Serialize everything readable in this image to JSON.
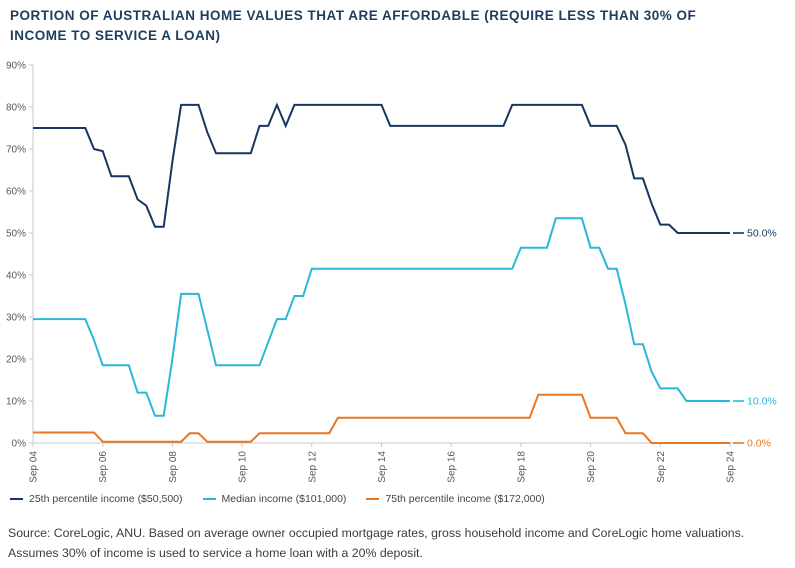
{
  "title": "PORTION OF AUSTRALIAN HOME VALUES THAT ARE AFFORDABLE (REQUIRE LESS THAN 30% OF INCOME TO SERVICE A LOAN)",
  "source_note": "Source: CoreLogic, ANU. Based on average owner occupied mortgage rates, gross household income and CoreLogic home valuations. Assumes 30% of income is used to service a home loan with a 20% deposit.",
  "chart_data": {
    "type": "line",
    "frequency": "quarterly",
    "x_start": "Sep 2004",
    "x_end": "Sep 2024",
    "ylim": [
      0,
      90
    ],
    "grid": "off",
    "legend_position": "bottom-left",
    "axis_color": "#c8c8c8",
    "tick_label_color": "#595959",
    "y_tick_labels": [
      "0%",
      "10%",
      "20%",
      "30%",
      "40%",
      "50%",
      "60%",
      "70%",
      "80%",
      "90%"
    ],
    "x_tick_labels": [
      "Sep 04",
      "Sep 06",
      "Sep 08",
      "Sep 10",
      "Sep 12",
      "Sep 14",
      "Sep 16",
      "Sep 18",
      "Sep 20",
      "Sep 22",
      "Sep 24"
    ],
    "x_tick_indices": [
      0,
      8,
      16,
      24,
      32,
      40,
      48,
      56,
      64,
      72,
      80
    ],
    "series": [
      {
        "name": "25th percentile income ($50,500)",
        "color": "#16375f",
        "end_label": "50.0%",
        "values": [
          75,
          75,
          75,
          75,
          75,
          75,
          75,
          70,
          69.5,
          63.5,
          63.5,
          63.5,
          58,
          56.5,
          51.5,
          51.5,
          67,
          80.5,
          80.5,
          80.5,
          74,
          69,
          69,
          69,
          69,
          69,
          75.5,
          75.5,
          80.5,
          75.5,
          80.5,
          80.5,
          80.5,
          80.5,
          80.5,
          80.5,
          80.5,
          80.5,
          80.5,
          80.5,
          80.5,
          75.5,
          75.5,
          75.5,
          75.5,
          75.5,
          75.5,
          75.5,
          75.5,
          75.5,
          75.5,
          75.5,
          75.5,
          75.5,
          75.5,
          80.5,
          80.5,
          80.5,
          80.5,
          80.5,
          80.5,
          80.5,
          80.5,
          80.5,
          75.5,
          75.5,
          75.5,
          75.5,
          71,
          63,
          63,
          57,
          52,
          52,
          50,
          50,
          50,
          50,
          50,
          50,
          50
        ]
      },
      {
        "name": "Median income ($101,000)",
        "color": "#2ab7d8",
        "end_label": "10.0%",
        "values": [
          29.5,
          29.5,
          29.5,
          29.5,
          29.5,
          29.5,
          29.5,
          24.5,
          18.5,
          18.5,
          18.5,
          18.5,
          12,
          12,
          6.5,
          6.5,
          20,
          35.5,
          35.5,
          35.5,
          27,
          18.5,
          18.5,
          18.5,
          18.5,
          18.5,
          18.5,
          24,
          29.5,
          29.5,
          35,
          35,
          41.5,
          41.5,
          41.5,
          41.5,
          41.5,
          41.5,
          41.5,
          41.5,
          41.5,
          41.5,
          41.5,
          41.5,
          41.5,
          41.5,
          41.5,
          41.5,
          41.5,
          41.5,
          41.5,
          41.5,
          41.5,
          41.5,
          41.5,
          41.5,
          46.5,
          46.5,
          46.5,
          46.5,
          53.5,
          53.5,
          53.5,
          53.5,
          46.5,
          46.5,
          41.5,
          41.5,
          33,
          23.5,
          23.5,
          17,
          13,
          13,
          13,
          10,
          10,
          10,
          10,
          10,
          10
        ]
      },
      {
        "name": "75th percentile income ($172,000)",
        "color": "#e87722",
        "end_label": "0.0%",
        "values": [
          2.5,
          2.5,
          2.5,
          2.5,
          2.5,
          2.5,
          2.5,
          2.5,
          0.3,
          0.3,
          0.3,
          0.3,
          0.3,
          0.3,
          0.3,
          0.3,
          0.3,
          0.3,
          2.3,
          2.3,
          0.3,
          0.3,
          0.3,
          0.3,
          0.3,
          0.3,
          2.3,
          2.3,
          2.3,
          2.3,
          2.3,
          2.3,
          2.3,
          2.3,
          2.3,
          6,
          6,
          6,
          6,
          6,
          6,
          6,
          6,
          6,
          6,
          6,
          6,
          6,
          6,
          6,
          6,
          6,
          6,
          6,
          6,
          6,
          6,
          6,
          11.5,
          11.5,
          11.5,
          11.5,
          11.5,
          11.5,
          6,
          6,
          6,
          6,
          2.3,
          2.3,
          2.3,
          0,
          0,
          0,
          0,
          0,
          0,
          0,
          0,
          0,
          0
        ]
      }
    ]
  }
}
